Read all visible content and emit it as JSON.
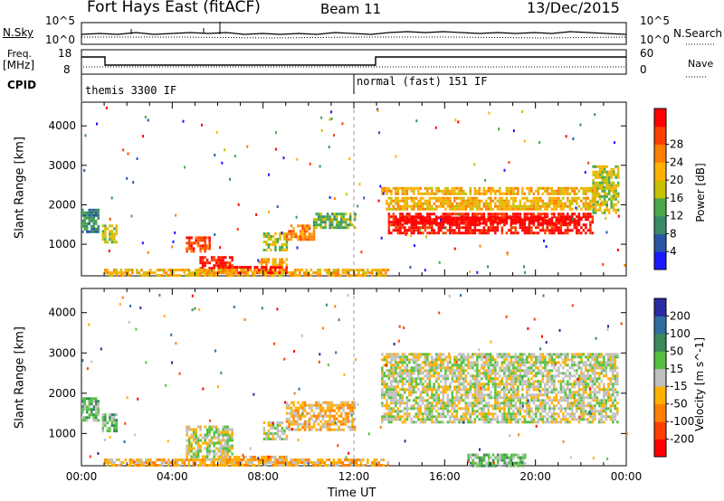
{
  "header": {
    "station": "Fort Hays East (fitACF)",
    "beam": "Beam 11",
    "date": "13/Dec/2015"
  },
  "noise_panel": {
    "left_label": "N.Sky",
    "right_label": "N.Search",
    "left_ticks": [
      "10^5",
      "10^0"
    ],
    "right_ticks": [
      "10^5",
      "10^0"
    ]
  },
  "freq_panel": {
    "left_label_line1": "Freq.",
    "left_label_line2": "[MHz]",
    "right_label": "Nave",
    "left_ticks": [
      "18",
      "8"
    ],
    "right_ticks": [
      "60",
      "0"
    ]
  },
  "cpid": {
    "label": "CPID",
    "segments": [
      {
        "name": "themis 3300 IF",
        "start_hour": 0
      },
      {
        "name": "normal (fast) 151 IF",
        "start_hour": 12
      }
    ]
  },
  "time_axis": {
    "label": "Time UT",
    "ticks": [
      "00:00",
      "04:00",
      "08:00",
      "12:00",
      "16:00",
      "20:00",
      "00:00"
    ]
  },
  "chart_data": [
    {
      "type": "heatmap",
      "name": "power",
      "ylabel": "Slant Range [km]",
      "yticks": [
        "1000",
        "2000",
        "3000",
        "4000"
      ],
      "xlim": [
        0,
        24
      ],
      "ylim": [
        200,
        4600
      ],
      "colorbar_label": "Power [dB]",
      "colorbar_ticks": [
        "4",
        "8",
        "12",
        "16",
        "20",
        "24",
        "28"
      ],
      "colorbar_colors": [
        "#1a1aff",
        "#2a56a6",
        "#3a8a6a",
        "#4aa84a",
        "#c8c000",
        "#ffb000",
        "#ff8000",
        "#ff4000",
        "#ff0000"
      ],
      "regions": [
        {
          "t0": 0.0,
          "t1": 0.7,
          "r0": 1300,
          "r1": 1900,
          "level": 2
        },
        {
          "t0": 0.9,
          "t1": 1.5,
          "r0": 1050,
          "r1": 1500,
          "level": 4
        },
        {
          "t0": 4.6,
          "t1": 5.6,
          "r0": 800,
          "r1": 1200,
          "level": 7
        },
        {
          "t0": 5.2,
          "t1": 6.6,
          "r0": 350,
          "r1": 700,
          "level": 8
        },
        {
          "t0": 6.0,
          "t1": 9.0,
          "r0": 250,
          "r1": 450,
          "level": 8
        },
        {
          "t0": 7.8,
          "t1": 9.0,
          "r0": 500,
          "r1": 650,
          "level": 5
        },
        {
          "t0": 8.0,
          "t1": 9.0,
          "r0": 850,
          "r1": 1300,
          "level": 4
        },
        {
          "t0": 9.0,
          "t1": 10.2,
          "r0": 1100,
          "r1": 1500,
          "level": 6
        },
        {
          "t0": 10.2,
          "t1": 12.0,
          "r0": 1400,
          "r1": 1800,
          "level": 3
        },
        {
          "t0": 1.0,
          "t1": 13.5,
          "r0": 200,
          "r1": 380,
          "level": 5
        },
        {
          "t0": 13.2,
          "t1": 22.8,
          "r0": 2300,
          "r1": 2450,
          "level": 5
        },
        {
          "t0": 13.4,
          "t1": 22.6,
          "r0": 1900,
          "r1": 2200,
          "level": 5
        },
        {
          "t0": 13.5,
          "t1": 22.5,
          "r0": 1300,
          "r1": 1800,
          "level": 8
        },
        {
          "t0": 13.8,
          "t1": 22.0,
          "r0": 1550,
          "r1": 1700,
          "level": 9
        },
        {
          "t0": 22.5,
          "t1": 23.6,
          "r0": 1800,
          "r1": 3000,
          "level": 4
        }
      ]
    },
    {
      "type": "heatmap",
      "name": "velocity",
      "ylabel": "Slant Range [km]",
      "yticks": [
        "1000",
        "2000",
        "3000",
        "4000"
      ],
      "xlim": [
        0,
        24
      ],
      "ylim": [
        200,
        4600
      ],
      "colorbar_label": "Velocity [m s^-1]",
      "colorbar_ticks": [
        "200",
        "100",
        "50",
        "15",
        "-15",
        "-50",
        "-100",
        "-200"
      ],
      "colorbar_colors": [
        "#2a2aa0",
        "#2f6ea0",
        "#3a8a5a",
        "#55c040",
        "#c0c0c0",
        "#ffb000",
        "#ff8000",
        "#ff4000",
        "#ff0000"
      ],
      "regions": [
        {
          "t0": 0.0,
          "t1": 0.7,
          "r0": 1300,
          "r1": 1900,
          "level": 3
        },
        {
          "t0": 0.9,
          "t1": 1.5,
          "r0": 1050,
          "r1": 1500,
          "level": 3
        },
        {
          "t0": 4.6,
          "t1": 6.6,
          "r0": 350,
          "r1": 1200,
          "level": 4
        },
        {
          "t0": 6.0,
          "t1": 9.0,
          "r0": 250,
          "r1": 450,
          "level": 5
        },
        {
          "t0": 8.0,
          "t1": 9.0,
          "r0": 850,
          "r1": 1300,
          "level": 4
        },
        {
          "t0": 9.0,
          "t1": 12.0,
          "r0": 1100,
          "r1": 1800,
          "level": 5
        },
        {
          "t0": 1.0,
          "t1": 13.5,
          "r0": 200,
          "r1": 380,
          "level": 5
        },
        {
          "t0": 13.2,
          "t1": 23.6,
          "r0": 1300,
          "r1": 3000,
          "level": 4
        },
        {
          "t0": 17.0,
          "t1": 19.5,
          "r0": 200,
          "r1": 500,
          "level": 3
        }
      ]
    }
  ]
}
